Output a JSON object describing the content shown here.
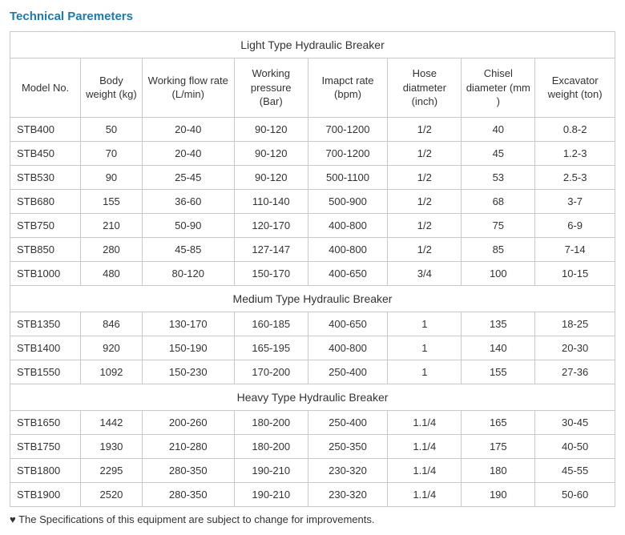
{
  "title": "Technical Paremeters",
  "columns": [
    "Model No.",
    "Body weight (kg)",
    "Working flow rate (L/min)",
    "Working pressure (Bar)",
    "Imapct rate (bpm)",
    "Hose diatmeter (inch)",
    "Chisel diameter (mm )",
    "Excavator weight (ton)"
  ],
  "sections": [
    {
      "label": "Light Type Hydraulic Breaker",
      "rows": [
        [
          "STB400",
          "50",
          "20-40",
          "90-120",
          "700-1200",
          "1/2",
          "40",
          "0.8-2"
        ],
        [
          "STB450",
          "70",
          "20-40",
          "90-120",
          "700-1200",
          "1/2",
          "45",
          "1.2-3"
        ],
        [
          "STB530",
          "90",
          "25-45",
          "90-120",
          "500-1100",
          "1/2",
          "53",
          "2.5-3"
        ],
        [
          "STB680",
          "155",
          "36-60",
          "110-140",
          "500-900",
          "1/2",
          "68",
          "3-7"
        ],
        [
          "STB750",
          "210",
          "50-90",
          "120-170",
          "400-800",
          "1/2",
          "75",
          "6-9"
        ],
        [
          "STB850",
          "280",
          "45-85",
          "127-147",
          "400-800",
          "1/2",
          "85",
          "7-14"
        ],
        [
          "STB1000",
          "480",
          "80-120",
          "150-170",
          "400-650",
          "3/4",
          "100",
          "10-15"
        ]
      ]
    },
    {
      "label": "Medium Type Hydraulic Breaker",
      "rows": [
        [
          "STB1350",
          "846",
          "130-170",
          "160-185",
          "400-650",
          "1",
          "135",
          "18-25"
        ],
        [
          "STB1400",
          "920",
          "150-190",
          "165-195",
          "400-800",
          "1",
          "140",
          "20-30"
        ],
        [
          "STB1550",
          "1092",
          "150-230",
          "170-200",
          "250-400",
          "1",
          "155",
          "27-36"
        ]
      ]
    },
    {
      "label": "Heavy Type Hydraulic Breaker",
      "rows": [
        [
          "STB1650",
          "1442",
          "200-260",
          "180-200",
          "250-400",
          "1.1/4",
          "165",
          "30-45"
        ],
        [
          "STB1750",
          "1930",
          "210-280",
          "180-200",
          "250-350",
          "1.1/4",
          "175",
          "40-50"
        ],
        [
          "STB1800",
          "2295",
          "280-350",
          "190-210",
          "230-320",
          "1.1/4",
          "180",
          "45-55"
        ],
        [
          "STB1900",
          "2520",
          "280-350",
          "190-210",
          "230-320",
          "1.1/4",
          "190",
          "50-60"
        ]
      ]
    }
  ],
  "footnote": "♥ The Specifications of this equipment are subject to change for improvements.",
  "style": {
    "title_color": "#1b7ab3",
    "border_color": "#c9c9c9",
    "text_color": "#333333",
    "font_family": "Arial",
    "title_fontsize": 15,
    "cell_fontsize": 13
  }
}
